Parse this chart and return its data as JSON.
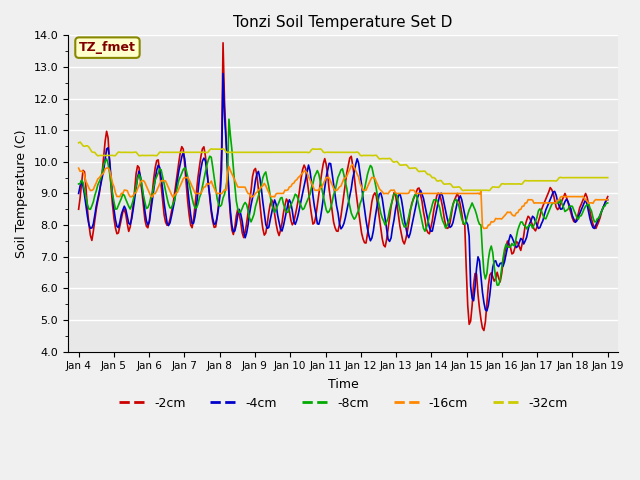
{
  "title": "Tonzi Soil Temperature Set D",
  "xlabel": "Time",
  "ylabel": "Soil Temperature (C)",
  "ylim": [
    4.0,
    14.0
  ],
  "yticks": [
    4.0,
    5.0,
    6.0,
    7.0,
    8.0,
    9.0,
    10.0,
    11.0,
    12.0,
    13.0,
    14.0
  ],
  "series_colors": {
    "-2cm": "#cc0000",
    "-4cm": "#0000cc",
    "-8cm": "#00aa00",
    "-16cm": "#ff8800",
    "-32cm": "#cccc00"
  },
  "legend_label": "TZ_fmet",
  "x_tick_labels": [
    "Jan 4",
    "Jan 5",
    "Jan 6",
    "Jan 7",
    "Jan 8",
    "Jan 9",
    "Jan 10",
    "Jan 11",
    "Jan 12",
    "Jan 13",
    "Jan 14",
    "Jan 15",
    "Jan 16",
    "Jan 17",
    "Jan 18",
    "Jan 19"
  ],
  "series_keys": [
    "-2cm",
    "-4cm",
    "-8cm",
    "-16cm",
    "-32cm"
  ]
}
